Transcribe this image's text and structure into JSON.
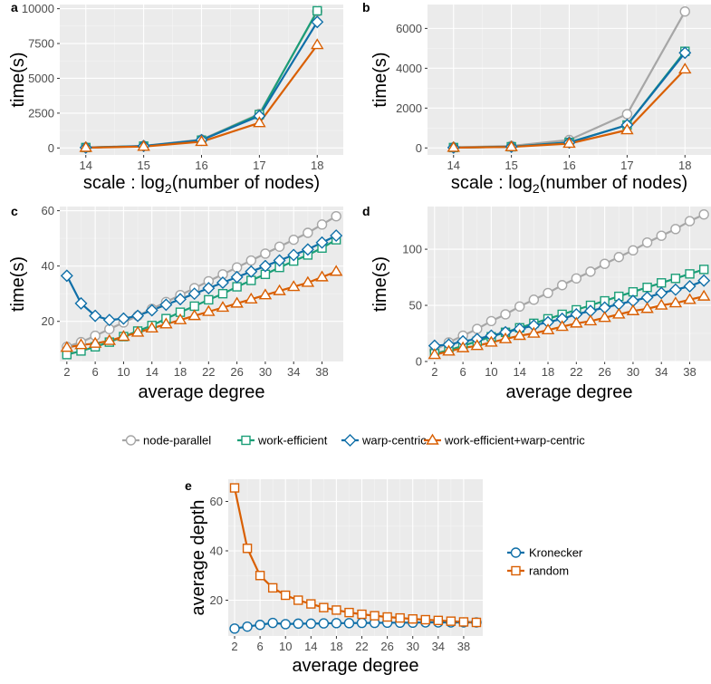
{
  "colors": {
    "node-parallel": "#a6a6a6",
    "work-efficient": "#1b9e77",
    "warp-centric": "#0f6fa8",
    "work-efficient+warp-centric": "#d95f02",
    "Kronecker": "#0f6fa8",
    "random": "#d95f02",
    "panel_bg": "#ebebeb",
    "grid": "#ffffff"
  },
  "legend_main": {
    "items": [
      {
        "name": "node-parallel",
        "marker": "circle"
      },
      {
        "name": "work-efficient",
        "marker": "square"
      },
      {
        "name": "warp-centric",
        "marker": "diamond"
      },
      {
        "name": "work-efficient+warp-centric",
        "marker": "triangle"
      }
    ]
  },
  "legend_e": {
    "items": [
      {
        "name": "Kronecker",
        "marker": "circle"
      },
      {
        "name": "random",
        "marker": "square"
      }
    ]
  },
  "chart_data": [
    {
      "panel": "a",
      "type": "line",
      "xlabel_prefix": "scale : log",
      "xlabel_sub": "2",
      "xlabel_suffix": "(number of nodes)",
      "ylabel": "time(s)",
      "xlim": [
        13.55,
        18.45
      ],
      "ylim": [
        -500,
        10300
      ],
      "xticks": [
        14,
        15,
        16,
        17,
        18
      ],
      "xticklabels": [
        "14",
        "15",
        "16",
        "17",
        "18"
      ],
      "yticks": [
        0,
        2500,
        5000,
        7500,
        10000
      ],
      "yticklabels": [
        "0",
        "2500",
        "5000",
        "7500",
        "10000"
      ],
      "x": [
        14,
        15,
        16,
        17,
        18
      ],
      "series": [
        {
          "name": "node-parallel",
          "marker": "circle",
          "values": [
            30,
            150,
            600,
            2450,
            9800
          ]
        },
        {
          "name": "work-efficient",
          "marker": "square",
          "values": [
            30,
            130,
            560,
            2400,
            9850
          ]
        },
        {
          "name": "warp-centric",
          "marker": "diamond",
          "values": [
            30,
            140,
            570,
            2300,
            9050
          ]
        },
        {
          "name": "work-efficient+warp-centric",
          "marker": "triangle",
          "values": [
            20,
            100,
            450,
            1800,
            7400
          ]
        }
      ]
    },
    {
      "panel": "b",
      "type": "line",
      "xlabel_prefix": "scale : log",
      "xlabel_sub": "2",
      "xlabel_suffix": "(number of nodes)",
      "ylabel": "time(s)",
      "xlim": [
        13.55,
        18.45
      ],
      "ylim": [
        -350,
        7200
      ],
      "xticks": [
        14,
        15,
        16,
        17,
        18
      ],
      "xticklabels": [
        "14",
        "15",
        "16",
        "17",
        "18"
      ],
      "yticks": [
        0,
        2000,
        4000,
        6000
      ],
      "yticklabels": [
        "0",
        "2000",
        "4000",
        "6000"
      ],
      "x": [
        14,
        15,
        16,
        17,
        18
      ],
      "series": [
        {
          "name": "node-parallel",
          "marker": "circle",
          "values": [
            30,
            100,
            400,
            1700,
            6850
          ]
        },
        {
          "name": "work-efficient",
          "marker": "square",
          "values": [
            20,
            60,
            280,
            1150,
            4850
          ]
        },
        {
          "name": "warp-centric",
          "marker": "diamond",
          "values": [
            20,
            60,
            270,
            1150,
            4780
          ]
        },
        {
          "name": "work-efficient+warp-centric",
          "marker": "triangle",
          "values": [
            15,
            50,
            220,
            900,
            3950
          ]
        }
      ]
    },
    {
      "panel": "c",
      "type": "line",
      "xlabel": "average degree",
      "ylabel": "time(s)",
      "xlim": [
        1.0,
        41.0
      ],
      "ylim": [
        5.5,
        61.5
      ],
      "xticks": [
        2,
        6,
        10,
        14,
        18,
        22,
        26,
        30,
        34,
        38
      ],
      "xticklabels": [
        "2",
        "6",
        "10",
        "14",
        "18",
        "22",
        "26",
        "30",
        "34",
        "38"
      ],
      "yticks": [
        20,
        40,
        60
      ],
      "yticklabels": [
        "20",
        "40",
        "60"
      ],
      "x": [
        2,
        4,
        6,
        8,
        10,
        12,
        14,
        16,
        18,
        20,
        22,
        24,
        26,
        28,
        30,
        32,
        34,
        36,
        38,
        40
      ],
      "series": [
        {
          "name": "node-parallel",
          "marker": "circle",
          "values": [
            10.8,
            12.5,
            14.8,
            17.2,
            19.6,
            22.0,
            24.5,
            27.0,
            29.5,
            32.0,
            34.5,
            37.0,
            39.5,
            42.0,
            44.5,
            47.0,
            49.5,
            52.0,
            55.0,
            58.0
          ]
        },
        {
          "name": "work-efficient",
          "marker": "square",
          "values": [
            8.0,
            9.3,
            10.8,
            12.5,
            14.5,
            16.5,
            18.5,
            21.0,
            23.3,
            25.5,
            27.8,
            30.0,
            32.5,
            34.8,
            37.0,
            39.5,
            41.8,
            44.0,
            46.5,
            49.5
          ]
        },
        {
          "name": "warp-centric",
          "marker": "diamond",
          "values": [
            36.5,
            26.5,
            22.0,
            20.5,
            21.0,
            22.0,
            24.0,
            26.0,
            28.0,
            30.0,
            32.0,
            34.0,
            36.0,
            38.0,
            40.0,
            42.0,
            44.0,
            46.0,
            48.5,
            51.0
          ]
        },
        {
          "name": "work-efficient+warp-centric",
          "marker": "triangle",
          "values": [
            10.5,
            11.5,
            12.0,
            13.0,
            14.5,
            16.0,
            17.5,
            19.0,
            20.5,
            22.0,
            23.5,
            25.0,
            26.5,
            28.0,
            29.5,
            31.0,
            32.5,
            34.0,
            36.0,
            38.0
          ]
        }
      ]
    },
    {
      "panel": "d",
      "type": "line",
      "xlabel": "average degree",
      "ylabel": "time(s)",
      "xlim": [
        1.0,
        41.0
      ],
      "ylim": [
        0,
        138
      ],
      "xticks": [
        2,
        6,
        10,
        14,
        18,
        22,
        26,
        30,
        34,
        38
      ],
      "xticklabels": [
        "2",
        "6",
        "10",
        "14",
        "18",
        "22",
        "26",
        "30",
        "34",
        "38"
      ],
      "yticks": [
        0,
        50,
        100
      ],
      "yticklabels": [
        "0",
        "50",
        "100"
      ],
      "x": [
        2,
        4,
        6,
        8,
        10,
        12,
        14,
        16,
        18,
        20,
        22,
        24,
        26,
        28,
        30,
        32,
        34,
        36,
        38,
        40
      ],
      "series": [
        {
          "name": "node-parallel",
          "marker": "circle",
          "values": [
            10,
            17,
            23,
            29,
            36,
            42,
            49,
            55,
            61,
            68,
            74,
            80,
            87,
            93,
            99,
            106,
            112,
            118,
            125,
            131
          ]
        },
        {
          "name": "work-efficient",
          "marker": "square",
          "values": [
            7,
            10,
            14,
            18,
            22,
            26,
            30,
            34,
            38,
            42,
            46,
            50,
            54,
            58,
            62,
            66,
            70,
            74,
            78,
            82
          ]
        },
        {
          "name": "warp-centric",
          "marker": "diamond",
          "values": [
            14,
            15,
            18,
            20,
            23,
            26,
            29,
            32,
            35,
            38,
            42,
            45,
            48,
            51,
            54,
            57,
            61,
            64,
            67,
            72
          ]
        },
        {
          "name": "work-efficient+warp-centric",
          "marker": "triangle",
          "values": [
            6,
            9,
            12,
            14,
            17,
            20,
            23,
            25,
            28,
            31,
            34,
            36,
            39,
            42,
            45,
            47,
            50,
            52,
            55,
            58
          ]
        }
      ]
    },
    {
      "panel": "e",
      "type": "line",
      "xlabel": "average degree",
      "ylabel": "average depth",
      "xlim": [
        1.0,
        41.0
      ],
      "ylim": [
        5.5,
        69
      ],
      "xticks": [
        2,
        6,
        10,
        14,
        18,
        22,
        26,
        30,
        34,
        38
      ],
      "xticklabels": [
        "2",
        "6",
        "10",
        "14",
        "18",
        "22",
        "26",
        "30",
        "34",
        "38"
      ],
      "yticks": [
        20,
        40,
        60
      ],
      "yticklabels": [
        "20",
        "40",
        "60"
      ],
      "x": [
        2,
        4,
        6,
        8,
        10,
        12,
        14,
        16,
        18,
        20,
        22,
        24,
        26,
        28,
        30,
        32,
        34,
        36,
        38,
        40
      ],
      "series": [
        {
          "name": "Kronecker",
          "marker": "circle",
          "values": [
            8.5,
            9.3,
            10.0,
            10.8,
            10.3,
            10.5,
            10.5,
            10.6,
            10.7,
            10.7,
            10.8,
            10.8,
            10.9,
            10.9,
            10.9,
            11.0,
            11.0,
            11.0,
            11.0,
            11.0
          ]
        },
        {
          "name": "random",
          "marker": "square",
          "values": [
            65.5,
            41.0,
            30.0,
            25.0,
            22.0,
            20.0,
            18.5,
            17.0,
            16.0,
            15.0,
            14.3,
            13.7,
            13.2,
            12.8,
            12.4,
            12.1,
            11.8,
            11.5,
            11.2,
            11.0
          ]
        }
      ]
    }
  ]
}
